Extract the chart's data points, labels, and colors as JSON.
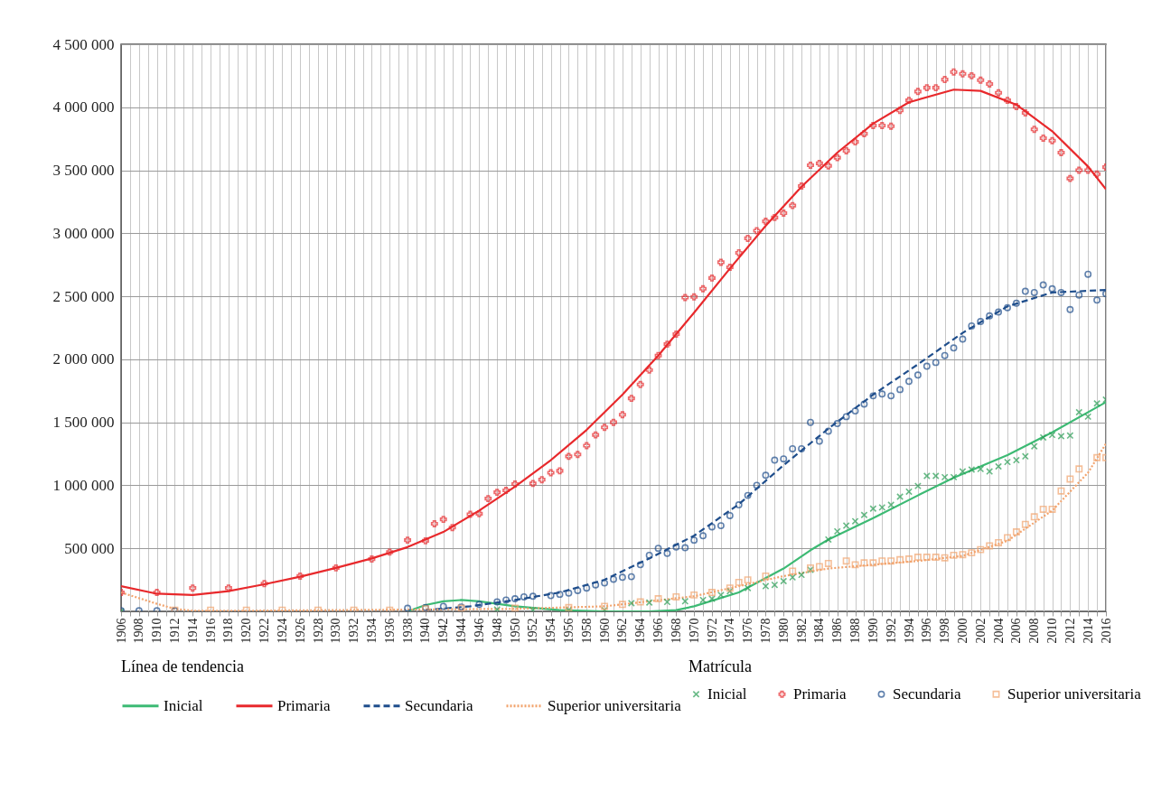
{
  "chart_data": {
    "type": "scatter",
    "legend_title": "Línea de tendencia",
    "annotations": [
      "Matrícula"
    ],
    "legend": "bottom",
    "grid": true,
    "xlim": [
      1906,
      2016
    ],
    "ylim": [
      0,
      4500000
    ],
    "yticks": [
      {
        "value": 500000,
        "label": "500 000"
      },
      {
        "value": 1000000,
        "label": "1 000 000"
      },
      {
        "value": 1500000,
        "label": "1 500 000"
      },
      {
        "value": 2000000,
        "label": "2 000 000"
      },
      {
        "value": 2500000,
        "label": "2 500 000"
      },
      {
        "value": 3000000,
        "label": "3 000 000"
      },
      {
        "value": 3500000,
        "label": "3 500 000"
      },
      {
        "value": 4000000,
        "label": "4 000 000"
      },
      {
        "value": 4500000,
        "label": "4 500 000"
      }
    ],
    "xticks": [
      1906,
      {
        "value": 1907,
        "label": null
      },
      1908,
      {
        "value": 1909,
        "label": null
      },
      1910,
      {
        "value": 1911,
        "label": null
      },
      1912,
      {
        "value": 1913,
        "label": null
      },
      1914,
      {
        "value": 1915,
        "label": null
      },
      1916,
      {
        "value": 1917,
        "label": null
      },
      1918,
      {
        "value": 1919,
        "label": null
      },
      1920,
      {
        "value": 1921,
        "label": null
      },
      1922,
      {
        "value": 1923,
        "label": null
      },
      1924,
      {
        "value": 1925,
        "label": null
      },
      1926,
      {
        "value": 1927,
        "label": null
      },
      1928,
      {
        "value": 1929,
        "label": null
      },
      1930,
      {
        "value": 1931,
        "label": null
      },
      1932,
      {
        "value": 1933,
        "label": null
      },
      1934,
      {
        "value": 1935,
        "label": null
      },
      1936,
      {
        "value": 1937,
        "label": null
      },
      1938,
      {
        "value": 1939,
        "label": null
      },
      1940,
      {
        "value": 1941,
        "label": null
      },
      1942,
      {
        "value": 1943,
        "label": null
      },
      1944,
      {
        "value": 1945,
        "label": null
      },
      1946,
      {
        "value": 1947,
        "label": null
      },
      1948,
      {
        "value": 1949,
        "label": null
      },
      1950,
      {
        "value": 1951,
        "label": null
      },
      1952,
      {
        "value": 1953,
        "label": null
      },
      1954,
      {
        "value": 1955,
        "label": null
      },
      1956,
      {
        "value": 1957,
        "label": null
      },
      1958,
      {
        "value": 1959,
        "label": null
      },
      1960,
      {
        "value": 1961,
        "label": null
      },
      1962,
      {
        "value": 1963,
        "label": null
      },
      1964,
      {
        "value": 1965,
        "label": null
      },
      1966,
      {
        "value": 1967,
        "label": null
      },
      1968,
      {
        "value": 1969,
        "label": null
      },
      1970,
      {
        "value": 1971,
        "label": null
      },
      1972,
      {
        "value": 1973,
        "label": null
      },
      1974,
      {
        "value": 1975,
        "label": null
      },
      1976,
      {
        "value": 1977,
        "label": null
      },
      1978,
      {
        "value": 1979,
        "label": null
      },
      1980,
      {
        "value": 1981,
        "label": null
      },
      1982,
      {
        "value": 1983,
        "label": null
      },
      1984,
      {
        "value": 1985,
        "label": null
      },
      1986,
      {
        "value": 1987,
        "label": null
      },
      1988,
      {
        "value": 1989,
        "label": null
      },
      1990,
      {
        "value": 1991,
        "label": null
      },
      1992,
      {
        "value": 1993,
        "label": null
      },
      1994,
      {
        "value": 1995,
        "label": null
      },
      1996,
      {
        "value": 1997,
        "label": null
      },
      1998,
      {
        "value": 1999,
        "label": null
      },
      2000,
      {
        "value": 2001,
        "label": null
      },
      2002,
      {
        "value": 2003,
        "label": null
      },
      2004,
      {
        "value": 2005,
        "label": null
      },
      2006,
      {
        "value": 2007,
        "label": null
      },
      2008,
      {
        "value": 2009,
        "label": null
      },
      2010,
      {
        "value": 2011,
        "label": null
      },
      2012,
      {
        "value": 2013,
        "label": null
      },
      2014,
      {
        "value": 2015,
        "label": null
      },
      2016
    ],
    "series": [
      {
        "name": "Inicial",
        "type": "line",
        "line_style": "solid",
        "color": "#3dba74",
        "x": [
          1938,
          1940,
          1942,
          1944,
          1946,
          1950,
          1955,
          1960,
          1965,
          1968,
          1970,
          1975,
          1980,
          1983,
          1985,
          1990,
          1995,
          1999,
          2005,
          2010,
          2016
        ],
        "values": [
          0,
          50000,
          80000,
          90000,
          80000,
          40000,
          10000,
          0,
          0,
          10000,
          40000,
          150000,
          340000,
          485000,
          570000,
          740000,
          920000,
          1060000,
          1240000,
          1420000,
          1660000
        ]
      },
      {
        "name": "Primaria",
        "type": "line",
        "line_style": "solid",
        "color": "#e8292c",
        "x": [
          1906,
          1910,
          1914,
          1918,
          1922,
          1926,
          1930,
          1934,
          1938,
          1942,
          1946,
          1950,
          1954,
          1958,
          1962,
          1966,
          1970,
          1974,
          1978,
          1982,
          1986,
          1990,
          1994,
          1999,
          2002,
          2006,
          2010,
          2014,
          2016
        ],
        "values": [
          200000,
          140000,
          130000,
          160000,
          215000,
          275000,
          345000,
          420000,
          510000,
          630000,
          800000,
          990000,
          1200000,
          1440000,
          1720000,
          2030000,
          2370000,
          2720000,
          3060000,
          3370000,
          3640000,
          3870000,
          4040000,
          4140000,
          4130000,
          4020000,
          3810000,
          3530000,
          3350000
        ]
      },
      {
        "name": "Secundaria",
        "type": "line",
        "line_style": "dashed",
        "color": "#1f4e8c",
        "x": [
          1940,
          1945,
          1950,
          1955,
          1960,
          1965,
          1970,
          1975,
          1980,
          1985,
          1990,
          1995,
          2000,
          2005,
          2010,
          2016
        ],
        "values": [
          10000,
          40000,
          90000,
          150000,
          250000,
          420000,
          600000,
          850000,
          1160000,
          1450000,
          1720000,
          1960000,
          2210000,
          2420000,
          2530000,
          2550000
        ]
      },
      {
        "name": "Superior universitaria",
        "type": "line",
        "line_style": "dotted",
        "color": "#f2a46e",
        "x": [
          1906,
          1910,
          1912,
          1914,
          1920,
          1930,
          1940,
          1950,
          1960,
          1970,
          1975,
          1980,
          1985,
          1990,
          1995,
          2000,
          2005,
          2010,
          2014,
          2016
        ],
        "values": [
          150000,
          60000,
          20000,
          5000,
          5000,
          10000,
          15000,
          20000,
          40000,
          120000,
          200000,
          280000,
          340000,
          370000,
          400000,
          440000,
          560000,
          800000,
          1100000,
          1330000
        ]
      },
      {
        "name": "Inicial",
        "type": "scatter",
        "marker": "x",
        "color": "#2a9d55",
        "x": [
          1906,
          1940,
          1944,
          1948,
          1952,
          1956,
          1960,
          1963,
          1965,
          1967,
          1969,
          1971,
          1972,
          1973,
          1974,
          1976,
          1978,
          1979,
          1980,
          1981,
          1982,
          1983,
          1984,
          1985,
          1986,
          1987,
          1988,
          1989,
          1990,
          1991,
          1992,
          1993,
          1994,
          1995,
          1996,
          1997,
          1998,
          1999,
          2000,
          2001,
          2002,
          2003,
          2004,
          2005,
          2006,
          2007,
          2008,
          2009,
          2010,
          2011,
          2012,
          2013,
          2014,
          2015,
          2016
        ],
        "values": [
          0,
          null,
          null,
          15000,
          10000,
          10000,
          10000,
          65000,
          70000,
          75000,
          80000,
          90000,
          100000,
          130000,
          160000,
          185000,
          200000,
          210000,
          240000,
          270000,
          290000,
          330000,
          null,
          570000,
          635000,
          680000,
          715000,
          765000,
          815000,
          825000,
          845000,
          910000,
          950000,
          995000,
          1075000,
          1075000,
          1065000,
          1065000,
          1110000,
          1125000,
          1130000,
          1110000,
          1150000,
          1185000,
          1200000,
          1230000,
          1310000,
          1380000,
          1400000,
          1390000,
          1395000,
          1580000,
          1545000,
          1650000,
          1680000
        ]
      },
      {
        "name": "Primaria",
        "type": "scatter",
        "marker": "cross",
        "color": "#e8292c",
        "x": [
          1906,
          1910,
          1914,
          1918,
          1922,
          1926,
          1930,
          1934,
          1936,
          1938,
          1940,
          1941,
          1942,
          1943,
          1945,
          1946,
          1947,
          1948,
          1949,
          1950,
          1952,
          1953,
          1954,
          1955,
          1956,
          1957,
          1958,
          1959,
          1960,
          1961,
          1962,
          1963,
          1964,
          1965,
          1966,
          1967,
          1968,
          1969,
          1970,
          1971,
          1972,
          1973,
          1974,
          1975,
          1976,
          1977,
          1978,
          1979,
          1980,
          1981,
          1982,
          1983,
          1984,
          1985,
          1986,
          1987,
          1988,
          1989,
          1990,
          1991,
          1992,
          1993,
          1994,
          1995,
          1996,
          1997,
          1998,
          1999,
          2000,
          2001,
          2002,
          2003,
          2004,
          2005,
          2006,
          2007,
          2008,
          2009,
          2010,
          2011,
          2012,
          2013,
          2014,
          2015,
          2016
        ],
        "values": [
          150000,
          150000,
          185000,
          185000,
          220000,
          280000,
          345000,
          415000,
          470000,
          565000,
          560000,
          695000,
          730000,
          665000,
          770000,
          775000,
          895000,
          945000,
          960000,
          1010000,
          1015000,
          1045000,
          1100000,
          1115000,
          1230000,
          1245000,
          1315000,
          1400000,
          1460000,
          1500000,
          1560000,
          1690000,
          1800000,
          1915000,
          2030000,
          2120000,
          2200000,
          2490000,
          2495000,
          2560000,
          2645000,
          2770000,
          2730000,
          2845000,
          2960000,
          3020000,
          3095000,
          3125000,
          3160000,
          3220000,
          3375000,
          3540000,
          3555000,
          3535000,
          3600000,
          3655000,
          3725000,
          3790000,
          3855000,
          3855000,
          3850000,
          3975000,
          4055000,
          4125000,
          4155000,
          4155000,
          4220000,
          4280000,
          4265000,
          4250000,
          4215000,
          4185000,
          4115000,
          4055000,
          4005000,
          3955000,
          3825000,
          3755000,
          3735000,
          3640000,
          3435000,
          3500000,
          3500000,
          3470000,
          3525000
        ]
      },
      {
        "name": "Secundaria",
        "type": "scatter",
        "marker": "circle",
        "color": "#1f4e8c",
        "x": [
          1906,
          1908,
          1910,
          1912,
          1938,
          1940,
          1942,
          1944,
          1946,
          1948,
          1949,
          1950,
          1951,
          1952,
          1954,
          1955,
          1956,
          1957,
          1958,
          1959,
          1960,
          1961,
          1962,
          1963,
          1964,
          1965,
          1966,
          1967,
          1968,
          1969,
          1970,
          1971,
          1972,
          1973,
          1974,
          1975,
          1976,
          1977,
          1978,
          1979,
          1980,
          1981,
          1982,
          1983,
          1984,
          1985,
          1986,
          1987,
          1988,
          1989,
          1990,
          1991,
          1992,
          1993,
          1994,
          1995,
          1996,
          1997,
          1998,
          1999,
          2000,
          2001,
          2002,
          2003,
          2004,
          2005,
          2006,
          2007,
          2008,
          2009,
          2010,
          2011,
          2012,
          2013,
          2014,
          2015,
          2016
        ],
        "values": [
          5000,
          5000,
          5000,
          5000,
          25000,
          30000,
          40000,
          35000,
          55000,
          75000,
          90000,
          100000,
          115000,
          120000,
          125000,
          135000,
          145000,
          165000,
          185000,
          210000,
          225000,
          255000,
          270000,
          275000,
          370000,
          445000,
          500000,
          460000,
          510000,
          505000,
          565000,
          600000,
          670000,
          680000,
          760000,
          845000,
          920000,
          1000000,
          1080000,
          1200000,
          1210000,
          1290000,
          1290000,
          1500000,
          1350000,
          1430000,
          1490000,
          1545000,
          1590000,
          1645000,
          1710000,
          1725000,
          1710000,
          1760000,
          1825000,
          1875000,
          1945000,
          1975000,
          2030000,
          2090000,
          2160000,
          2265000,
          2300000,
          2345000,
          2375000,
          2410000,
          2445000,
          2540000,
          2530000,
          2590000,
          2560000,
          2530000,
          2395000,
          2510000,
          2675000,
          2470000,
          2520000
        ]
      },
      {
        "name": "Superior universitaria",
        "type": "scatter",
        "marker": "square",
        "color": "#f2a46e",
        "x": [
          1912,
          1916,
          1920,
          1924,
          1928,
          1932,
          1936,
          1940,
          1944,
          1950,
          1956,
          1960,
          1962,
          1964,
          1966,
          1968,
          1970,
          1972,
          1974,
          1975,
          1976,
          1978,
          1981,
          1983,
          1984,
          1985,
          1987,
          1988,
          1989,
          1990,
          1991,
          1992,
          1993,
          1994,
          1995,
          1996,
          1997,
          1998,
          1999,
          2000,
          2001,
          2002,
          2003,
          2004,
          2005,
          2006,
          2007,
          2008,
          2009,
          2010,
          2011,
          2012,
          2013,
          2015,
          2016
        ],
        "values": [
          10000,
          10000,
          10000,
          10000,
          10000,
          10000,
          10000,
          20000,
          25000,
          25000,
          30000,
          40000,
          55000,
          75000,
          100000,
          115000,
          130000,
          150000,
          185000,
          230000,
          250000,
          280000,
          320000,
          345000,
          355000,
          380000,
          400000,
          370000,
          385000,
          385000,
          400000,
          400000,
          410000,
          415000,
          430000,
          430000,
          430000,
          425000,
          445000,
          450000,
          465000,
          490000,
          520000,
          545000,
          585000,
          630000,
          690000,
          750000,
          810000,
          810000,
          955000,
          1050000,
          1130000,
          1220000,
          1220000
        ]
      }
    ]
  }
}
